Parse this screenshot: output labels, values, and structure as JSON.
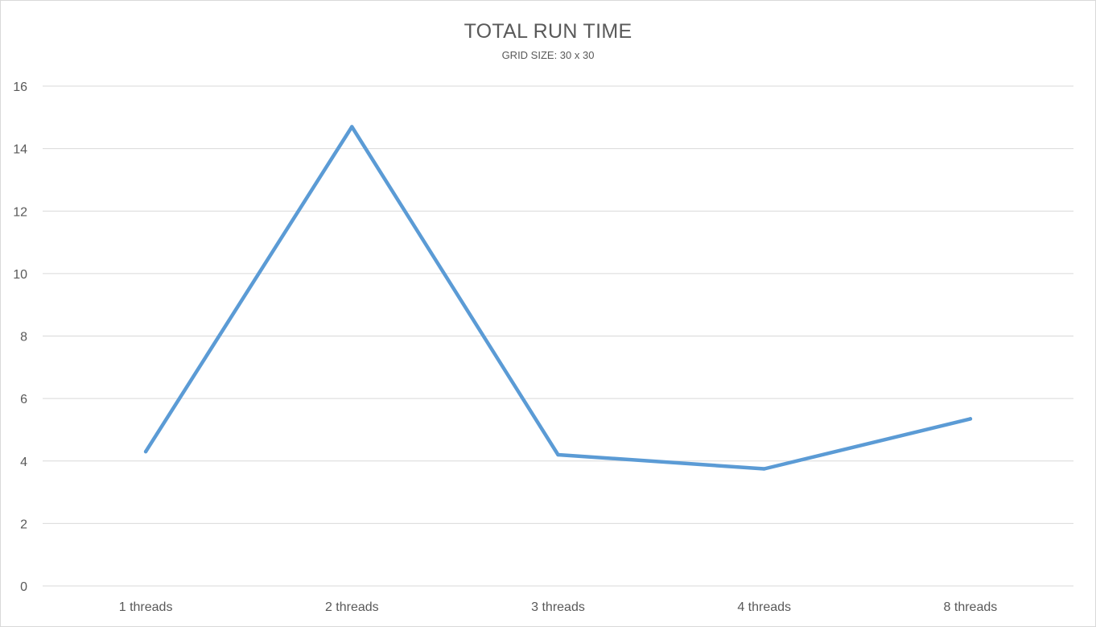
{
  "chart_data": {
    "type": "line",
    "title": "TOTAL RUN TIME",
    "subtitle": "GRID SIZE: 30 x 30",
    "xlabel": "",
    "ylabel": "",
    "categories": [
      "1 threads",
      "2 threads",
      "3 threads",
      "4 threads",
      "8 threads"
    ],
    "series": [
      {
        "values": [
          4.3,
          14.7,
          4.2,
          3.75,
          5.35
        ],
        "color": "#5b9bd5"
      }
    ],
    "ylim": [
      0,
      16
    ],
    "yticks": [
      0,
      2,
      4,
      6,
      8,
      10,
      12,
      14,
      16
    ],
    "grid": true,
    "legend": "none"
  }
}
